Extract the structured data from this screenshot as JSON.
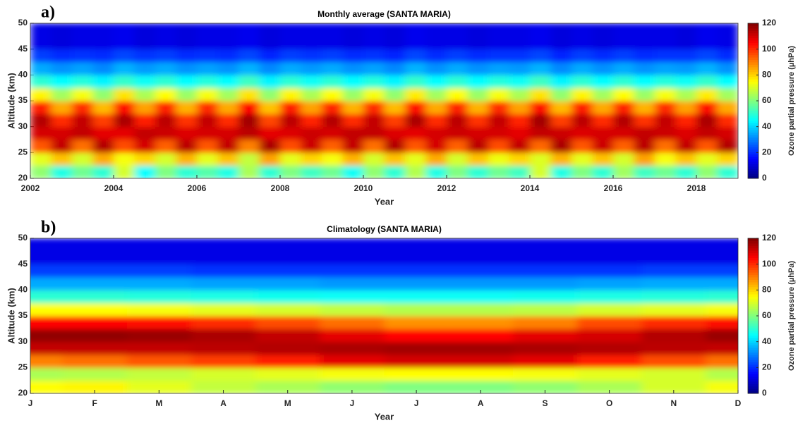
{
  "chart_data": [
    {
      "type": "heatmap",
      "panel_label": "a)",
      "title": "Monthly average (SANTA MARIA)",
      "xlabel": "Year",
      "ylabel": "Altitude (km)",
      "colorbar_label": "Ozone partial pressure (µhPa)",
      "colormap": "jet",
      "xlim": [
        2002,
        2019
      ],
      "xticks": [
        2002,
        2004,
        2006,
        2008,
        2010,
        2012,
        2014,
        2016,
        2018
      ],
      "ylim": [
        20,
        50
      ],
      "yticks": [
        20,
        25,
        30,
        35,
        40,
        45,
        50
      ],
      "clim": [
        0,
        120
      ],
      "cticks": [
        0,
        20,
        40,
        60,
        80,
        100,
        120
      ],
      "x_edges": [
        2002,
        2002.5,
        2003,
        2003.5,
        2004,
        2004.5,
        2005,
        2005.5,
        2006,
        2006.5,
        2007,
        2007.5,
        2008,
        2008.5,
        2009,
        2009.5,
        2010,
        2010.5,
        2011,
        2011.5,
        2012,
        2012.5,
        2013,
        2013.5,
        2014,
        2014.5,
        2015,
        2015.5,
        2016,
        2016.5,
        2017,
        2017.5,
        2018,
        2018.5,
        2019
      ],
      "y_edges": [
        20,
        22.5,
        25,
        27.5,
        30,
        32.5,
        35,
        37.5,
        40,
        42.5,
        45,
        50
      ],
      "z": [
        [
          62,
          48,
          58,
          50,
          70,
          45,
          60,
          50,
          55,
          48,
          65,
          50,
          60,
          52,
          58,
          46,
          62,
          50,
          66,
          48,
          60,
          50,
          58,
          52,
          70,
          48,
          60,
          50,
          64,
          52,
          58,
          50,
          62,
          50
        ],
        [
          72,
          82,
          70,
          85,
          74,
          80,
          70,
          84,
          72,
          82,
          68,
          86,
          72,
          80,
          74,
          84,
          70,
          82,
          72,
          85,
          70,
          82,
          73,
          80,
          71,
          84,
          72,
          82,
          70,
          86,
          74,
          82,
          72,
          80
        ],
        [
          95,
          112,
          92,
          114,
          96,
          110,
          94,
          113,
          95,
          112,
          90,
          115,
          96,
          111,
          94,
          112,
          92,
          114,
          95,
          110,
          94,
          113,
          96,
          112,
          93,
          115,
          95,
          111,
          94,
          113,
          92,
          112,
          95,
          114
        ],
        [
          110,
          110,
          112,
          108,
          108,
          112,
          111,
          109,
          110,
          110,
          113,
          108,
          109,
          111,
          110,
          112,
          112,
          109,
          108,
          110,
          111,
          110,
          110,
          108,
          112,
          111,
          109,
          110,
          110,
          112,
          111,
          109,
          112,
          110
        ],
        [
          114,
          100,
          112,
          98,
          115,
          102,
          113,
          99,
          112,
          100,
          116,
          97,
          113,
          101,
          114,
          100,
          112,
          98,
          115,
          100,
          113,
          99,
          112,
          101,
          116,
          98,
          113,
          100,
          114,
          99,
          112,
          101,
          115,
          100
        ],
        [
          102,
          85,
          100,
          83,
          104,
          86,
          101,
          84,
          100,
          85,
          105,
          82,
          102,
          86,
          101,
          84,
          100,
          83,
          103,
          85,
          101,
          84,
          100,
          86,
          104,
          83,
          102,
          85,
          101,
          84,
          100,
          86,
          103,
          85
        ],
        [
          76,
          64,
          74,
          62,
          78,
          65,
          75,
          63,
          74,
          64,
          78,
          62,
          76,
          65,
          75,
          63,
          74,
          62,
          77,
          64,
          75,
          63,
          74,
          65,
          78,
          62,
          76,
          64,
          75,
          63,
          74,
          65,
          77,
          64
        ],
        [
          50,
          45,
          49,
          44,
          51,
          46,
          50,
          45,
          49,
          45,
          52,
          44,
          50,
          46,
          50,
          45,
          49,
          44,
          51,
          45,
          50,
          45,
          49,
          46,
          52,
          44,
          50,
          45,
          50,
          45,
          49,
          46,
          51,
          45
        ],
        [
          35,
          32,
          34,
          31,
          36,
          33,
          35,
          32,
          34,
          32,
          36,
          31,
          35,
          33,
          35,
          32,
          34,
          31,
          36,
          32,
          35,
          32,
          34,
          33,
          36,
          31,
          35,
          32,
          35,
          32,
          34,
          33,
          36,
          32
        ],
        [
          22,
          20,
          21,
          20,
          23,
          21,
          22,
          20,
          21,
          20,
          23,
          19,
          22,
          21,
          22,
          20,
          21,
          19,
          23,
          20,
          22,
          20,
          21,
          21,
          23,
          19,
          22,
          20,
          22,
          20,
          21,
          21,
          23,
          20
        ],
        [
          12,
          11,
          12,
          12,
          13,
          11,
          12,
          11,
          12,
          12,
          13,
          11,
          12,
          12,
          12,
          11,
          12,
          11,
          13,
          12,
          12,
          11,
          12,
          12,
          13,
          11,
          12,
          11,
          12,
          12,
          12,
          11,
          13,
          12
        ]
      ]
    },
    {
      "type": "heatmap-categorical",
      "panel_label": "b)",
      "title": "Climatology (SANTA MARIA)",
      "xlabel": "Year",
      "ylabel": "Altitude (km)",
      "colorbar_label": "Ozone partial pressure (µhPa)",
      "colormap": "jet",
      "categories": [
        "J",
        "F",
        "M",
        "A",
        "M",
        "J",
        "J",
        "A",
        "S",
        "O",
        "N",
        "D"
      ],
      "ylim": [
        20,
        50
      ],
      "yticks": [
        20,
        25,
        30,
        35,
        40,
        45,
        50
      ],
      "clim": [
        0,
        120
      ],
      "cticks": [
        0,
        20,
        40,
        60,
        80,
        100,
        120
      ],
      "y_edges": [
        20,
        22.5,
        25,
        27.5,
        30,
        32.5,
        35,
        37.5,
        40,
        42.5,
        45,
        50
      ],
      "z": [
        [
          75,
          76,
          72,
          68,
          65,
          62,
          60,
          60,
          62,
          65,
          70,
          74
        ],
        [
          65,
          66,
          68,
          70,
          72,
          74,
          75,
          75,
          74,
          72,
          70,
          66
        ],
        [
          90,
          92,
          95,
          98,
          102,
          108,
          110,
          110,
          108,
          102,
          96,
          92
        ],
        [
          112,
          112,
          112,
          113,
          114,
          115,
          116,
          116,
          115,
          114,
          113,
          112
        ],
        [
          118,
          118,
          117,
          115,
          112,
          108,
          105,
          105,
          108,
          110,
          114,
          117
        ],
        [
          105,
          105,
          104,
          100,
          96,
          92,
          88,
          88,
          90,
          96,
          100,
          104
        ],
        [
          75,
          75,
          74,
          72,
          70,
          68,
          66,
          66,
          67,
          70,
          72,
          74
        ],
        [
          50,
          50,
          49,
          48,
          47,
          46,
          46,
          46,
          47,
          48,
          49,
          50
        ],
        [
          35,
          35,
          35,
          34,
          34,
          33,
          33,
          33,
          33,
          34,
          35,
          35
        ],
        [
          22,
          22,
          22,
          21,
          21,
          21,
          21,
          21,
          21,
          21,
          22,
          22
        ],
        [
          12,
          12,
          12,
          12,
          12,
          12,
          12,
          12,
          12,
          12,
          12,
          12
        ]
      ]
    }
  ]
}
